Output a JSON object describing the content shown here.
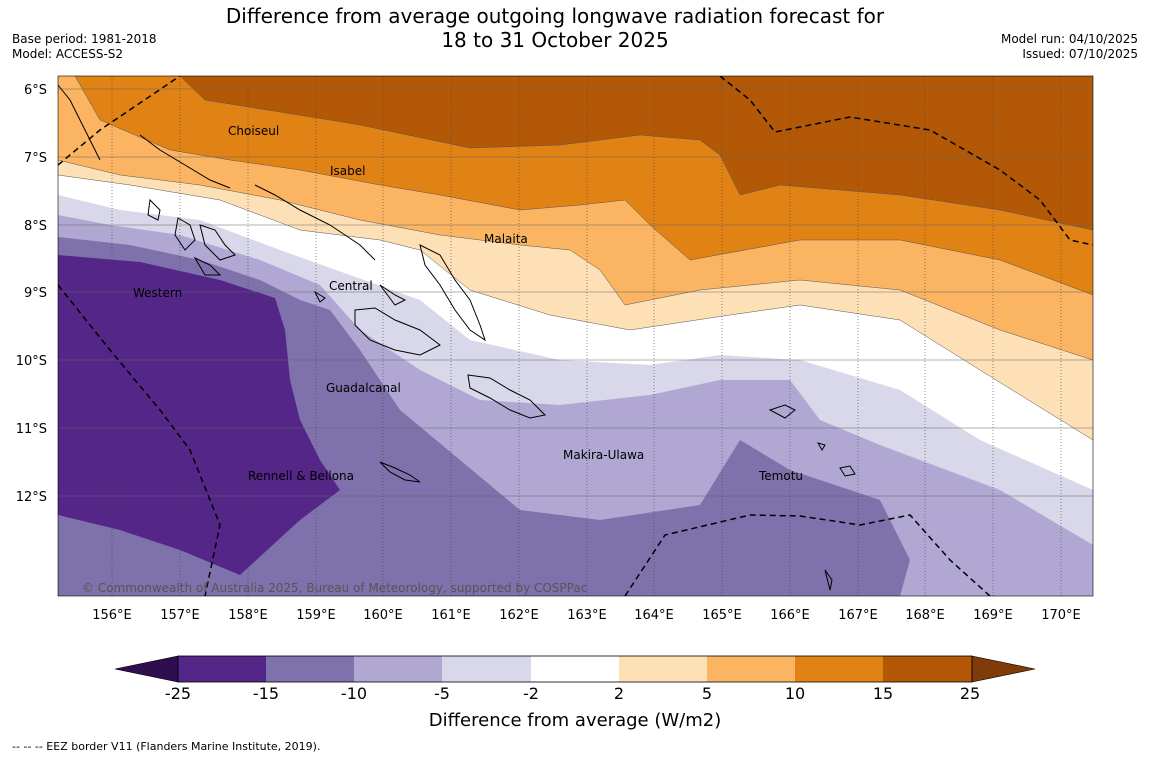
{
  "header": {
    "title_line1": "Difference from average outgoing longwave radiation forecast for",
    "title_line2": "18 to 31 October 2025",
    "base_period": "Base period: 1981-2018",
    "model": "Model: ACCESS-S2",
    "model_run": "Model run: 04/10/2025",
    "issued": "Issued: 07/10/2025"
  },
  "map": {
    "lat_labels": [
      "6°S",
      "7°S",
      "8°S",
      "9°S",
      "10°S",
      "11°S",
      "12°S"
    ],
    "lon_labels": [
      "156°E",
      "157°E",
      "158°E",
      "159°E",
      "160°E",
      "161°E",
      "162°E",
      "163°E",
      "164°E",
      "165°E",
      "166°E",
      "167°E",
      "168°E",
      "169°E",
      "170°E"
    ],
    "regions": [
      "Choiseul",
      "Isabel",
      "Malaita",
      "Western",
      "Central",
      "Guadalcanal",
      "Makira-Ulawa",
      "Rennell & Bellona",
      "Temotu"
    ],
    "copyright": "© Commonwealth of Australia 2025, Bureau of Meteorology, supported by COSPPac"
  },
  "colorbar": {
    "ticks": [
      "-25",
      "-15",
      "-10",
      "-5",
      "-2",
      "2",
      "5",
      "10",
      "15",
      "25"
    ],
    "colors": [
      "#2e0e4f",
      "#532688",
      "#7f71ab",
      "#b0a8d2",
      "#d8d8ea",
      "#ffffff",
      "#fee0b6",
      "#fbb462",
      "#e08214",
      "#b35806",
      "#7f3b08"
    ],
    "title": "Difference from average (W/m2)"
  },
  "footnote": "--  --  -- EEZ border V11 (Flanders Marine Institute, 2019)."
}
